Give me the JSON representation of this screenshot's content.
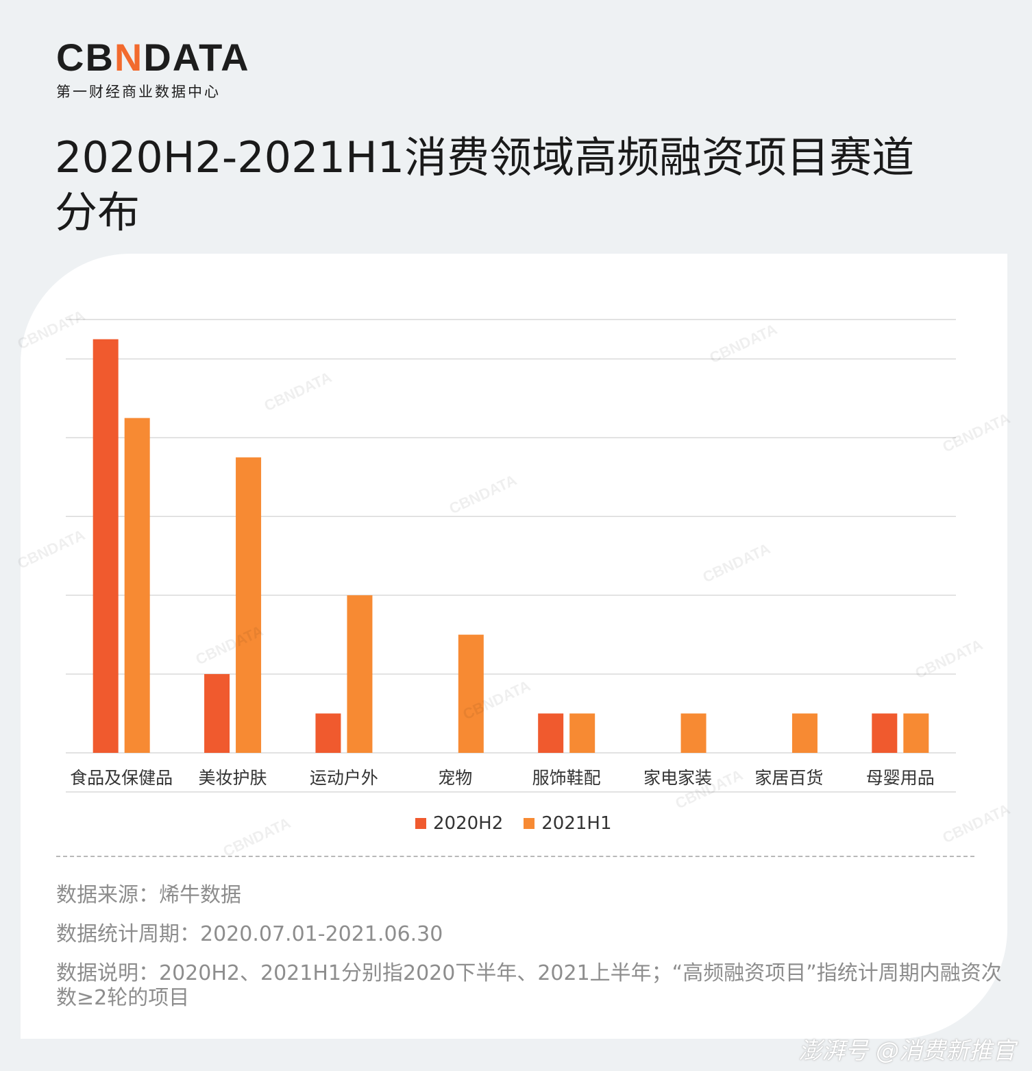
{
  "logo": {
    "brand_left": "CB",
    "brand_n": "N",
    "brand_right": "DATA",
    "tagline": "第一财经商业数据中心"
  },
  "title": "2020H2-2021H1消费领域高频融资项目赛道分布",
  "chart_data": {
    "type": "bar",
    "categories": [
      "食品及保健品",
      "美妆护肤",
      "运动户外",
      "宠物",
      "服饰鞋配",
      "家电家装",
      "家居百货",
      "母婴用品"
    ],
    "series": [
      {
        "name": "2020H2",
        "values": [
          10.5,
          2,
          1,
          0,
          1,
          0,
          0,
          1
        ],
        "color": "#f05a2e"
      },
      {
        "name": "2021H1",
        "values": [
          8.5,
          7.5,
          4,
          3,
          1,
          1,
          1,
          1
        ],
        "color": "#f78a33"
      }
    ],
    "ylim": [
      0,
      11
    ],
    "grid": true,
    "legend": "bottom"
  },
  "notes": {
    "source": "数据来源：烯牛数据",
    "period": "数据统计周期：2020.07.01-2021.06.30",
    "explain": "数据说明：2020H2、2021H1分别指2020下半年、2021上半年；“高频融资项目”指统计周期内融资次数≥2轮的项目"
  },
  "footer": {
    "brand": "澎湃号 @消费新推官"
  },
  "watermark": "CBNDATA"
}
